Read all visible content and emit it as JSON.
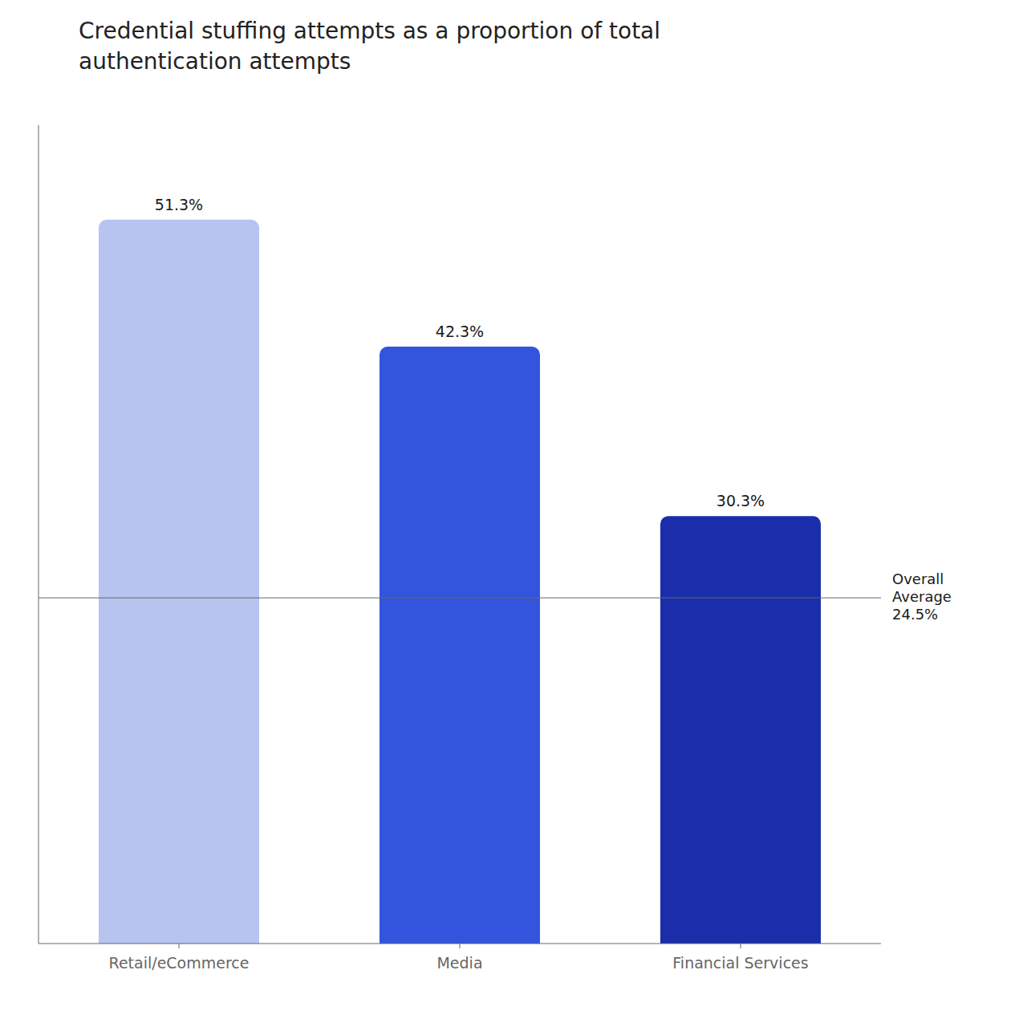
{
  "chart_data": {
    "type": "bar",
    "title": "Credential stuffing attempts as a proportion of total\nauthentication attempts",
    "categories": [
      "Retail/eCommerce",
      "Media",
      "Financial Services"
    ],
    "values": [
      51.3,
      42.3,
      30.3
    ],
    "value_labels": [
      "51.3%",
      "42.3%",
      "30.3%"
    ],
    "colors": [
      "#b8c4f0",
      "#3355dd",
      "#1a2daa"
    ],
    "ylim": [
      0,
      58
    ],
    "data_labels": true,
    "tick_labels": "x",
    "grid": false,
    "annotations": [
      {
        "type": "hline",
        "y": 24.5,
        "text": [
          "Overall",
          "Average",
          "24.5%"
        ]
      }
    ]
  }
}
